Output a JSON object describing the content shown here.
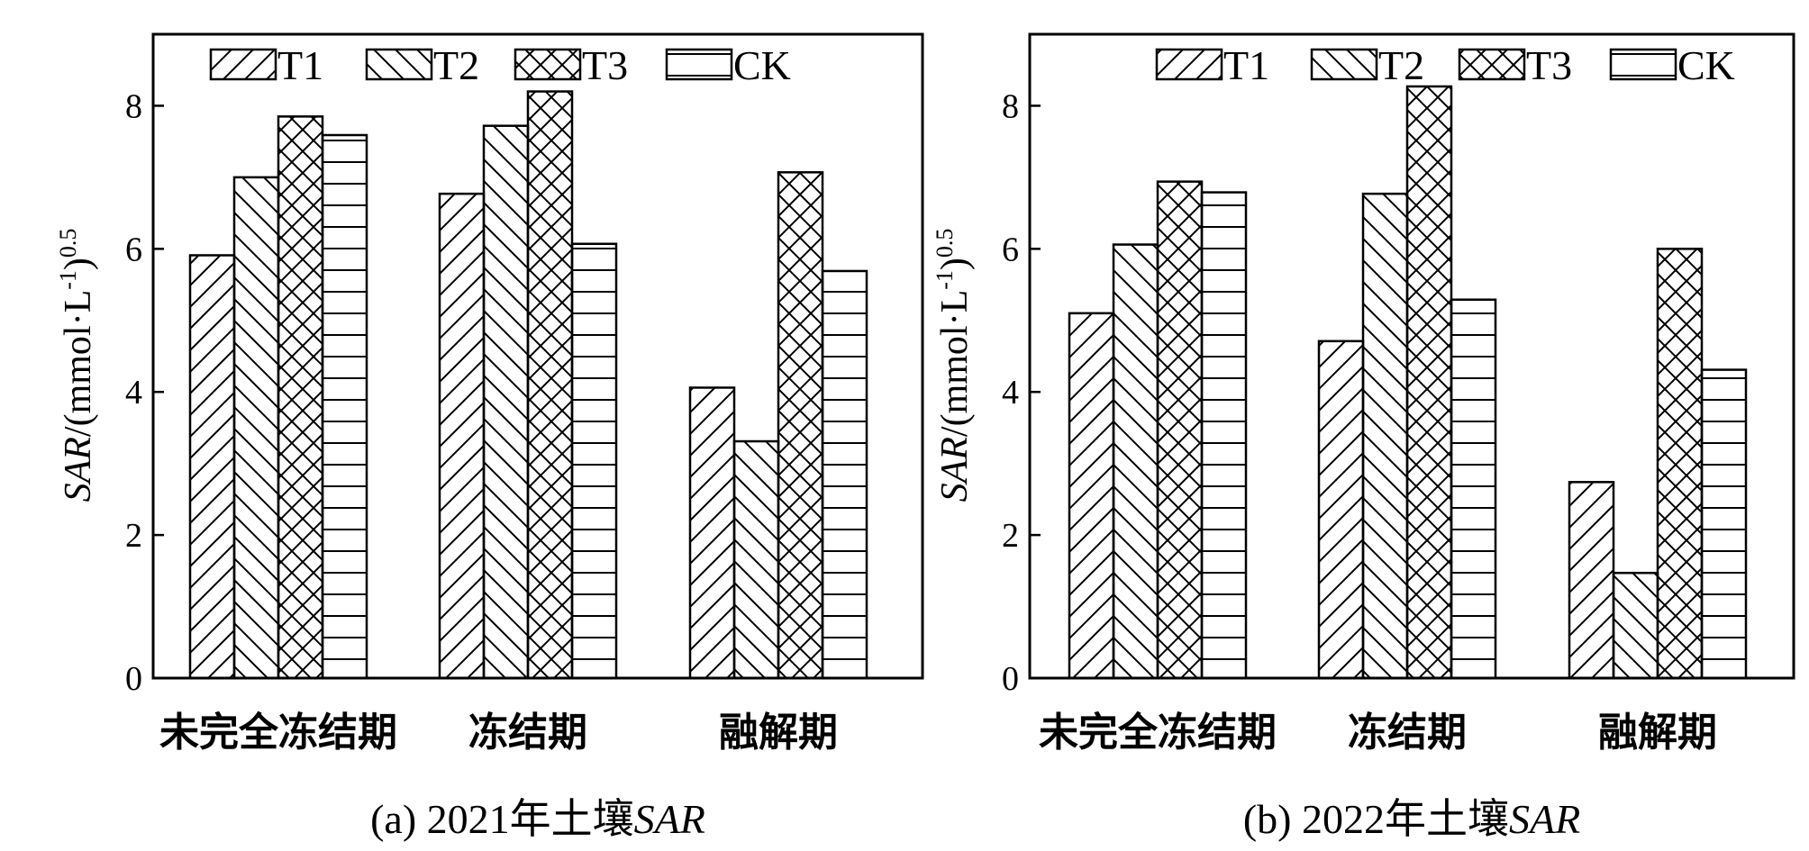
{
  "chart_data": [
    {
      "type": "bar",
      "title": "(a) 2021年土壤SAR",
      "caption_prefix": "(a) 2021年土壤",
      "caption_italic": "SAR",
      "ylabel_italic": "SAR",
      "ylabel_rest": "/(mmol·L",
      "ylabel_sup1": "-1",
      "ylabel_close": ")",
      "ylabel_sup2": "0.5",
      "ylim": [
        0,
        9
      ],
      "yticks": [
        "0",
        "2",
        "4",
        "6",
        "8"
      ],
      "categories": [
        "未完全冻结期",
        "冻结期",
        "融解期"
      ],
      "legend": "top",
      "series": [
        {
          "name": "T1",
          "pattern": "fwd",
          "values": [
            5.91,
            6.77,
            4.06
          ]
        },
        {
          "name": "T2",
          "pattern": "back",
          "values": [
            7.0,
            7.72,
            3.31
          ]
        },
        {
          "name": "T3",
          "pattern": "cross",
          "values": [
            7.85,
            8.2,
            7.07
          ]
        },
        {
          "name": "CK",
          "pattern": "horiz",
          "values": [
            7.59,
            6.07,
            5.69
          ]
        }
      ]
    },
    {
      "type": "bar",
      "title": "(b) 2022年土壤SAR",
      "caption_prefix": "(b) 2022年土壤",
      "caption_italic": "SAR",
      "ylabel_italic": "SAR",
      "ylabel_rest": "/(mmol·L",
      "ylabel_sup1": "-1",
      "ylabel_close": ")",
      "ylabel_sup2": "0.5",
      "ylim": [
        0,
        9
      ],
      "yticks": [
        "0",
        "2",
        "4",
        "6",
        "8"
      ],
      "categories": [
        "未完全冻结期",
        "冻结期",
        "融解期"
      ],
      "legend": "top",
      "series": [
        {
          "name": "T1",
          "pattern": "fwd",
          "values": [
            5.1,
            4.71,
            2.74
          ]
        },
        {
          "name": "T2",
          "pattern": "back",
          "values": [
            6.06,
            6.77,
            1.47
          ]
        },
        {
          "name": "T3",
          "pattern": "cross",
          "values": [
            6.94,
            8.27,
            6.0
          ]
        },
        {
          "name": "CK",
          "pattern": "horiz",
          "values": [
            6.79,
            5.29,
            4.31
          ]
        }
      ]
    }
  ]
}
